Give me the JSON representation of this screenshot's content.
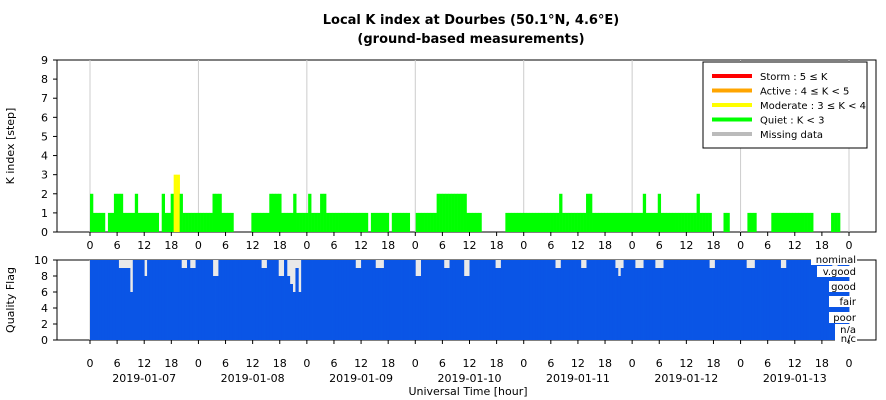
{
  "chart_data": [
    {
      "type": "bar",
      "title": "Local K index at Dourbes (50.1°N, 4.6°E)",
      "subtitle": "(ground-based measurements)",
      "ylabel": "K index [step]",
      "ylim": [
        0,
        9
      ],
      "yticks": [
        "0",
        "1",
        "2",
        "3",
        "4",
        "5",
        "6",
        "7",
        "8",
        "9"
      ],
      "x_hour_ticks": [
        "0",
        "6",
        "12",
        "18",
        "0",
        "6",
        "12",
        "18",
        "0",
        "6",
        "12",
        "18",
        "0",
        "6",
        "12",
        "18",
        "0",
        "6",
        "12",
        "18",
        "0",
        "6",
        "12",
        "18",
        "0",
        "6",
        "12",
        "18",
        "0"
      ],
      "time_range_hours": [
        0,
        168
      ],
      "legend_position": "top-right",
      "legend": [
        {
          "label": "Storm : 5 ≤ K",
          "color": "#ff0000"
        },
        {
          "label": "Active : 4 ≤ K < 5",
          "color": "#ffa500"
        },
        {
          "label": "Moderate : 3 ≤ K < 4",
          "color": "#ffff00"
        },
        {
          "label": "Quiet : K < 3",
          "color": "#00ff00"
        },
        {
          "label": "Missing data",
          "color": "#bbbbbb"
        }
      ],
      "k_values": [
        2,
        1,
        1,
        1,
        1,
        0,
        1,
        1,
        2,
        2,
        2,
        1,
        1,
        1,
        1,
        2,
        1,
        1,
        1,
        1,
        1,
        1,
        1,
        0,
        2,
        1,
        1,
        2,
        3,
        3,
        2,
        1,
        1,
        1,
        1,
        1,
        1,
        1,
        1,
        1,
        1,
        2,
        2,
        2,
        1,
        1,
        1,
        1,
        0,
        0,
        0,
        0,
        0,
        0,
        1,
        1,
        1,
        1,
        1,
        1,
        2,
        2,
        2,
        2,
        1,
        1,
        1,
        1,
        2,
        1,
        1,
        1,
        1,
        2,
        1,
        1,
        1,
        2,
        2,
        1,
        1,
        1,
        1,
        1,
        1,
        1,
        1,
        1,
        1,
        1,
        1,
        1,
        1,
        0,
        1,
        1,
        1,
        1,
        1,
        1,
        0,
        1,
        1,
        1,
        1,
        1,
        1,
        0,
        0,
        1,
        1,
        1,
        1,
        1,
        1,
        1,
        2,
        2,
        2,
        2,
        2,
        2,
        2,
        2,
        2,
        2,
        1,
        1,
        1,
        1,
        1,
        0,
        0,
        0,
        0,
        0,
        0,
        0,
        0,
        1,
        1,
        1,
        1,
        1,
        1,
        1,
        1,
        1,
        1,
        1,
        1,
        1,
        1,
        1,
        1,
        1,
        1,
        2,
        1,
        1,
        1,
        1,
        1,
        1,
        1,
        1,
        2,
        2,
        1,
        1,
        1,
        1,
        1,
        1,
        1,
        1,
        1,
        1,
        1,
        1,
        1,
        1,
        1,
        1,
        1,
        2,
        1,
        1,
        1,
        1,
        2,
        1,
        1,
        1,
        1,
        1,
        1,
        1,
        1,
        1,
        1,
        1,
        1,
        2,
        1,
        1,
        1,
        1,
        0,
        0,
        0,
        0,
        1,
        1,
        0,
        0,
        0,
        0,
        0,
        0,
        1,
        1,
        1,
        0,
        0,
        0,
        0,
        0,
        1,
        1,
        1,
        1,
        1,
        1,
        1,
        1,
        1,
        1,
        1,
        1,
        1,
        1,
        0,
        0,
        0,
        0,
        0,
        0,
        1,
        1,
        1,
        0,
        0,
        0
      ]
    },
    {
      "type": "heatmap",
      "ylabel": "Quality Flag",
      "xlabel": "Universal Time [hour]",
      "ylim": [
        0,
        10
      ],
      "yticks": [
        "0",
        "2",
        "4",
        "6",
        "8",
        "10"
      ],
      "x_hour_ticks": [
        "0",
        "6",
        "12",
        "18",
        "0",
        "6",
        "12",
        "18",
        "0",
        "6",
        "12",
        "18",
        "0",
        "6",
        "12",
        "18",
        "0",
        "6",
        "12",
        "18",
        "0",
        "6",
        "12",
        "18",
        "0",
        "6",
        "12",
        "18",
        "0"
      ],
      "date_labels": [
        "2019-01-07",
        "2019-01-08",
        "2019-01-09",
        "2019-01-10",
        "2019-01-11",
        "2019-01-12",
        "2019-01-13"
      ],
      "quality_levels": [
        "nominal",
        "v.good",
        "good",
        "fair",
        "poor",
        "n/a",
        "n/c"
      ],
      "fill_color": "#0a55e6",
      "quality_values": [
        10,
        10,
        10,
        10,
        10,
        10,
        10,
        10,
        10,
        10,
        9,
        9,
        9,
        9,
        6,
        10,
        10,
        10,
        10,
        8,
        10,
        10,
        10,
        10,
        10,
        10,
        10,
        10,
        10,
        10,
        10,
        10,
        9,
        9,
        10,
        9,
        9,
        10,
        10,
        10,
        10,
        10,
        10,
        8,
        8,
        10,
        10,
        10,
        10,
        10,
        10,
        10,
        10,
        10,
        10,
        10,
        10,
        10,
        10,
        10,
        9,
        9,
        10,
        10,
        10,
        10,
        8,
        8,
        10,
        8,
        7,
        6,
        9,
        6,
        10,
        10,
        10,
        10,
        10,
        10,
        10,
        10,
        10,
        10,
        10,
        10,
        10,
        10,
        10,
        10,
        10,
        10,
        10,
        9,
        9,
        10,
        10,
        10,
        10,
        10,
        9,
        9,
        9,
        10,
        10,
        10,
        10,
        10,
        10,
        10,
        10,
        10,
        10,
        10,
        8,
        8,
        10,
        10,
        10,
        10,
        10,
        10,
        10,
        10,
        9,
        9,
        10,
        10,
        10,
        10,
        10,
        8,
        8,
        10,
        10,
        10,
        10,
        10,
        10,
        10,
        10,
        10,
        9,
        9,
        10,
        10,
        10,
        10,
        10,
        10,
        10,
        10,
        10,
        10,
        10,
        10,
        10,
        10,
        10,
        10,
        10,
        10,
        10,
        9,
        9,
        10,
        10,
        10,
        10,
        10,
        10,
        10,
        9,
        9,
        10,
        10,
        10,
        10,
        10,
        10,
        10,
        10,
        10,
        10,
        9,
        8,
        9,
        10,
        10,
        10,
        10,
        9,
        9,
        9,
        10,
        10,
        10,
        10,
        9,
        9,
        9,
        10,
        10,
        10,
        10,
        10,
        10,
        10,
        10,
        10,
        10,
        10,
        10,
        10,
        10,
        10,
        10,
        9,
        9,
        10,
        10,
        10,
        10,
        10,
        10,
        10,
        10,
        10,
        10,
        10,
        9,
        9,
        9,
        10,
        10,
        10,
        10,
        10,
        10,
        10,
        10,
        10,
        9,
        9,
        10,
        10,
        10,
        10,
        10,
        10,
        10,
        10,
        10,
        10,
        10,
        10,
        10,
        10,
        10,
        10,
        9,
        9,
        10,
        10,
        10,
        10
      ]
    }
  ]
}
